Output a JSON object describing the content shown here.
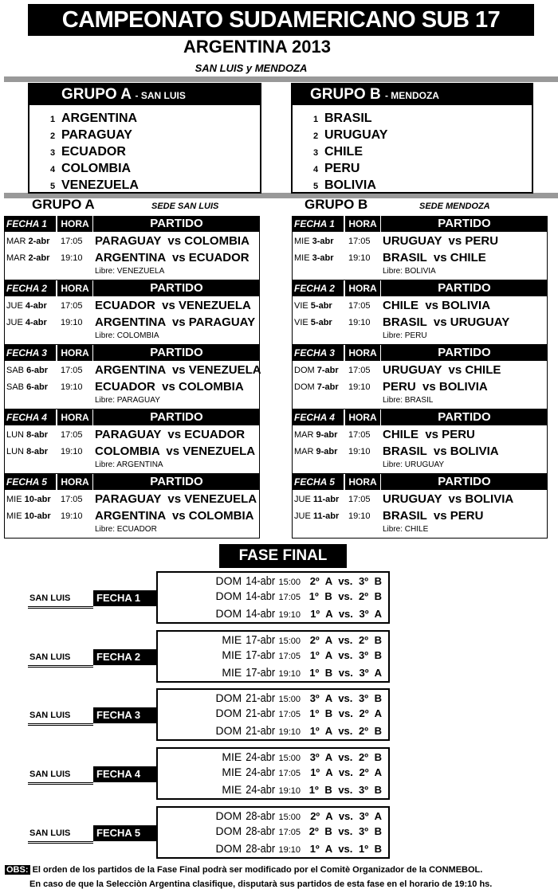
{
  "title": "CAMPEONATO SUDAMERICANO SUB 17",
  "subtitle": "ARGENTINA 2013",
  "venues": "SAN LUIS y MENDOZA",
  "groups": [
    {
      "title": "GRUPO A",
      "sede": "- SAN LUIS",
      "teams": [
        "ARGENTINA",
        "PARAGUAY",
        "ECUADOR",
        "COLOMBIA",
        "VENEZUELA"
      ]
    },
    {
      "title": "GRUPO B",
      "sede": "- MENDOZA",
      "teams": [
        "BRASIL",
        "URUGUAY",
        "CHILE",
        "PERU",
        "BOLIVIA"
      ]
    }
  ],
  "fixtures": [
    {
      "title": "GRUPO A",
      "sede": "SEDE SAN LUIS",
      "col_hora": "HORA",
      "col_partido": "PARTIDO",
      "fechas": [
        {
          "label": "FECHA 1",
          "matches": [
            {
              "day": "MAR",
              "date": "2-abr",
              "time": "17:05",
              "match": "PARAGUAY  vs COLOMBIA"
            },
            {
              "day": "MAR",
              "date": "2-abr",
              "time": "19:10",
              "match": "ARGENTINA  vs ECUADOR"
            }
          ],
          "libre": "Libre: VENEZUELA"
        },
        {
          "label": "FECHA 2",
          "matches": [
            {
              "day": "JUE",
              "date": "4-abr",
              "time": "17:05",
              "match": "ECUADOR  vs VENEZUELA"
            },
            {
              "day": "JUE",
              "date": "4-abr",
              "time": "19:10",
              "match": "ARGENTINA  vs PARAGUAY"
            }
          ],
          "libre": "Libre: COLOMBIA"
        },
        {
          "label": "FECHA 3",
          "matches": [
            {
              "day": "SAB",
              "date": "6-abr",
              "time": "17:05",
              "match": "ARGENTINA  vs VENEZUELA"
            },
            {
              "day": "SAB",
              "date": "6-abr",
              "time": "19:10",
              "match": "ECUADOR  vs COLOMBIA"
            }
          ],
          "libre": "Libre: PARAGUAY"
        },
        {
          "label": "FECHA 4",
          "matches": [
            {
              "day": "LUN",
              "date": "8-abr",
              "time": "17:05",
              "match": "PARAGUAY  vs ECUADOR"
            },
            {
              "day": "LUN",
              "date": "8-abr",
              "time": "19:10",
              "match": "COLOMBIA  vs VENEZUELA"
            }
          ],
          "libre": "Libre: ARGENTINA"
        },
        {
          "label": "FECHA 5",
          "matches": [
            {
              "day": "MIE",
              "date": "10-abr",
              "time": "17:05",
              "match": "PARAGUAY  vs VENEZUELA"
            },
            {
              "day": "MIE",
              "date": "10-abr",
              "time": "19:10",
              "match": "ARGENTINA  vs COLOMBIA"
            }
          ],
          "libre": "Libre: ECUADOR"
        }
      ]
    },
    {
      "title": "GRUPO B",
      "sede": "SEDE MENDOZA",
      "col_hora": "HORA",
      "col_partido": "PARTIDO",
      "fechas": [
        {
          "label": "FECHA 1",
          "matches": [
            {
              "day": "MIE",
              "date": "3-abr",
              "time": "17:05",
              "match": "URUGUAY  vs PERU"
            },
            {
              "day": "MIE",
              "date": "3-abr",
              "time": "19:10",
              "match": "BRASIL  vs CHILE"
            }
          ],
          "libre": "Libre: BOLIVIA"
        },
        {
          "label": "FECHA 2",
          "matches": [
            {
              "day": "VIE",
              "date": "5-abr",
              "time": "17:05",
              "match": "CHILE  vs BOLIVIA"
            },
            {
              "day": "VIE",
              "date": "5-abr",
              "time": "19:10",
              "match": "BRASIL  vs URUGUAY"
            }
          ],
          "libre": "Libre: PERU"
        },
        {
          "label": "FECHA 3",
          "matches": [
            {
              "day": "DOM",
              "date": "7-abr",
              "time": "17:05",
              "match": "URUGUAY  vs CHILE"
            },
            {
              "day": "DOM",
              "date": "7-abr",
              "time": "19:10",
              "match": "PERU  vs BOLIVIA"
            }
          ],
          "libre": "Libre: BRASIL"
        },
        {
          "label": "FECHA 4",
          "matches": [
            {
              "day": "MAR",
              "date": "9-abr",
              "time": "17:05",
              "match": "CHILE  vs PERU"
            },
            {
              "day": "MAR",
              "date": "9-abr",
              "time": "19:10",
              "match": "BRASIL  vs BOLIVIA"
            }
          ],
          "libre": "Libre: URUGUAY"
        },
        {
          "label": "FECHA 5",
          "matches": [
            {
              "day": "JUE",
              "date": "11-abr",
              "time": "17:05",
              "match": "URUGUAY  vs BOLIVIA"
            },
            {
              "day": "JUE",
              "date": "11-abr",
              "time": "19:10",
              "match": "BRASIL  vs PERU"
            }
          ],
          "libre": "Libre: CHILE"
        }
      ]
    }
  ],
  "final": {
    "title": "FASE FINAL",
    "rounds": [
      {
        "venue": "SAN LUIS",
        "label": "FECHA 1",
        "matches": [
          {
            "day": "DOM",
            "date": "14-abr",
            "time": "15:00",
            "match": "2º A vs. 3º B"
          },
          {
            "day": "DOM",
            "date": "14-abr",
            "time": "17:05",
            "match": "1º B vs. 2º B"
          },
          {
            "day": "DOM",
            "date": "14-abr",
            "time": "19:10",
            "match": "1º A vs. 3º A"
          }
        ]
      },
      {
        "venue": "SAN LUIS",
        "label": "FECHA 2",
        "matches": [
          {
            "day": "MIE",
            "date": "17-abr",
            "time": "15:00",
            "match": "2º A vs. 2º B"
          },
          {
            "day": "MIE",
            "date": "17-abr",
            "time": "17:05",
            "match": "1º A vs. 3º B"
          },
          {
            "day": "MIE",
            "date": "17-abr",
            "time": "19:10",
            "match": "1º B vs. 3º A"
          }
        ]
      },
      {
        "venue": "SAN LUIS",
        "label": "FECHA 3",
        "matches": [
          {
            "day": "DOM",
            "date": "21-abr",
            "time": "15:00",
            "match": "3º A vs. 3º B"
          },
          {
            "day": "DOM",
            "date": "21-abr",
            "time": "17:05",
            "match": "1º B vs. 2º A"
          },
          {
            "day": "DOM",
            "date": "21-abr",
            "time": "19:10",
            "match": "1º A vs. 2º B"
          }
        ]
      },
      {
        "venue": "SAN LUIS",
        "label": "FECHA 4",
        "matches": [
          {
            "day": "MIE",
            "date": "24-abr",
            "time": "15:00",
            "match": "3º A vs. 2º B"
          },
          {
            "day": "MIE",
            "date": "24-abr",
            "time": "17:05",
            "match": "1º A vs. 2º A"
          },
          {
            "day": "MIE",
            "date": "24-abr",
            "time": "19:10",
            "match": "1º B vs. 3º B"
          }
        ]
      },
      {
        "venue": "SAN LUIS",
        "label": "FECHA 5",
        "matches": [
          {
            "day": "DOM",
            "date": "28-abr",
            "time": "15:00",
            "match": "2º A vs. 3º A"
          },
          {
            "day": "DOM",
            "date": "28-abr",
            "time": "17:05",
            "match": "2º B vs. 3º B"
          },
          {
            "day": "DOM",
            "date": "28-abr",
            "time": "19:10",
            "match": "1º A vs. 1º B"
          }
        ]
      }
    ]
  },
  "obs": {
    "tag": "OBS:",
    "line1": "El orden de los partidos de la Fase Final podrà ser modificado por el Comitè Organizador de la CONMEBOL.",
    "line2": "En caso de que la Selecciòn Argentina clasifique, disputarà sus partidos de esta fase en el horario de 19:10 hs."
  }
}
